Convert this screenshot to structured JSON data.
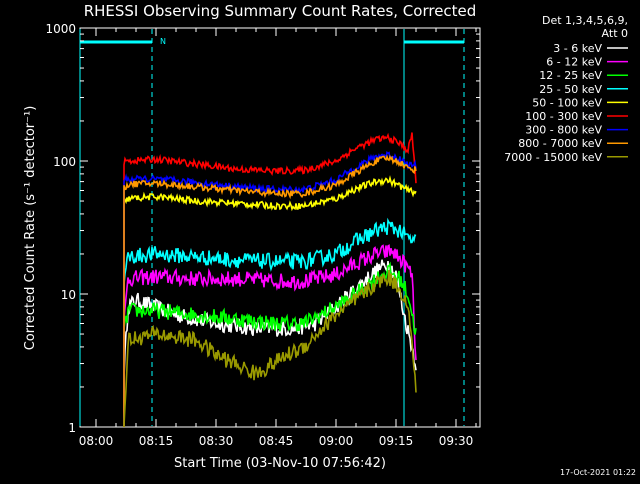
{
  "chart_data": {
    "type": "line",
    "title": "RHESSI Observing Summary Count Rates, Corrected",
    "xlabel": "Start Time (03-Nov-10 07:56:42)",
    "ylabel": "Corrected Count Rate (s⁻¹ detector⁻¹)",
    "yscale": "log",
    "ylim": [
      1,
      1000
    ],
    "xlim": [
      "07:56",
      "09:36"
    ],
    "x_ticks": [
      "08:00",
      "08:15",
      "08:30",
      "08:45",
      "09:00",
      "09:15",
      "09:30"
    ],
    "y_ticks": [
      "1",
      "10",
      "100",
      "1000"
    ],
    "legend_header": [
      "Det 1,3,4,5,6,9,",
      "Att 0"
    ],
    "legend_position": "right",
    "timestamp": "17-Oct-2021 01:22",
    "annotations": [
      {
        "text": "N",
        "time": "08:16"
      }
    ],
    "night_boundaries": [
      "07:56",
      "08:14",
      "09:17",
      "09:32"
    ],
    "series": [
      {
        "name": "3 - 6 keV",
        "color": "#ffffff",
        "times": [
          "08:07",
          "08:08",
          "08:10",
          "08:20",
          "08:30",
          "08:40",
          "08:50",
          "08:55",
          "09:00",
          "09:05",
          "09:10",
          "09:13",
          "09:15",
          "09:17",
          "09:19",
          "09:20"
        ],
        "values": [
          2.6,
          8,
          9,
          7,
          6,
          5.5,
          5.5,
          6,
          8,
          11,
          15,
          17,
          14,
          7,
          4,
          3
        ]
      },
      {
        "name": "6 - 12 keV",
        "color": "#ff00ff",
        "times": [
          "08:07",
          "08:08",
          "08:15",
          "08:25",
          "08:35",
          "08:45",
          "08:52",
          "09:00",
          "09:05",
          "09:10",
          "09:14",
          "09:17",
          "09:19",
          "09:20"
        ],
        "values": [
          6,
          13,
          13.5,
          13,
          13,
          12.5,
          12.5,
          14,
          17,
          20,
          21,
          17,
          14,
          3
        ]
      },
      {
        "name": "12 - 25 keV",
        "color": "#00ff00",
        "times": [
          "08:07",
          "08:08",
          "08:15",
          "08:25",
          "08:35",
          "08:45",
          "08:52",
          "09:00",
          "09:05",
          "09:10",
          "09:13",
          "09:16",
          "09:18",
          "09:20"
        ],
        "values": [
          5,
          7.5,
          7.5,
          7,
          6.5,
          6,
          6,
          8,
          10,
          13,
          15,
          13,
          10,
          5
        ]
      },
      {
        "name": "25 - 50 keV",
        "color": "#00ffff",
        "times": [
          "08:07",
          "08:08",
          "08:15",
          "08:25",
          "08:35",
          "08:45",
          "08:52",
          "09:00",
          "09:05",
          "09:10",
          "09:13",
          "09:16",
          "09:18",
          "09:20"
        ],
        "values": [
          12,
          19,
          20,
          19,
          18,
          17.5,
          17.5,
          20,
          25,
          30,
          32,
          30,
          26,
          25
        ]
      },
      {
        "name": "50 - 100 keV",
        "color": "#ffff00",
        "times": [
          "08:07",
          "08:08",
          "08:15",
          "08:25",
          "08:35",
          "08:45",
          "08:52",
          "09:00",
          "09:05",
          "09:10",
          "09:13",
          "09:16",
          "09:18",
          "09:20"
        ],
        "values": [
          48,
          52,
          54,
          50,
          48,
          46,
          46,
          52,
          62,
          70,
          72,
          65,
          60,
          58
        ]
      },
      {
        "name": "100 - 300 keV",
        "color": "#ff0000",
        "times": [
          "08:07",
          "08:08",
          "08:15",
          "08:25",
          "08:35",
          "08:45",
          "08:52",
          "09:00",
          "09:05",
          "09:10",
          "09:13",
          "09:16",
          "09:18",
          "09:19",
          "09:20"
        ],
        "values": [
          98,
          100,
          103,
          95,
          87,
          84,
          85,
          100,
          125,
          145,
          150,
          135,
          120,
          160,
          70
        ]
      },
      {
        "name": "300 - 800 keV",
        "color": "#0000ff",
        "times": [
          "08:07",
          "08:08",
          "08:15",
          "08:25",
          "08:35",
          "08:45",
          "08:52",
          "09:00",
          "09:05",
          "09:10",
          "09:13",
          "09:16",
          "09:18",
          "09:20"
        ],
        "values": [
          72,
          73,
          73,
          69,
          64,
          61,
          61,
          72,
          90,
          108,
          112,
          104,
          94,
          92
        ]
      },
      {
        "name": "800 - 7000 keV",
        "color": "#ff9900",
        "times": [
          "08:07",
          "08:08",
          "08:15",
          "08:25",
          "08:35",
          "08:45",
          "08:52",
          "09:00",
          "09:05",
          "09:10",
          "09:13",
          "09:16",
          "09:18",
          "09:20"
        ],
        "values": [
          62,
          67,
          68,
          64,
          60,
          57,
          57,
          66,
          82,
          100,
          105,
          98,
          88,
          86
        ]
      },
      {
        "name": "7000 - 15000 keV",
        "color": "#999900",
        "times": [
          "08:07",
          "08:08",
          "08:15",
          "08:25",
          "08:30",
          "08:40",
          "08:48",
          "08:52",
          "09:00",
          "09:05",
          "09:10",
          "09:13",
          "09:16",
          "09:18",
          "09:20"
        ],
        "values": [
          1,
          4.5,
          5,
          4.5,
          3.5,
          2.5,
          3.5,
          4,
          7,
          9,
          12,
          13.5,
          11,
          8,
          2
        ]
      }
    ]
  }
}
